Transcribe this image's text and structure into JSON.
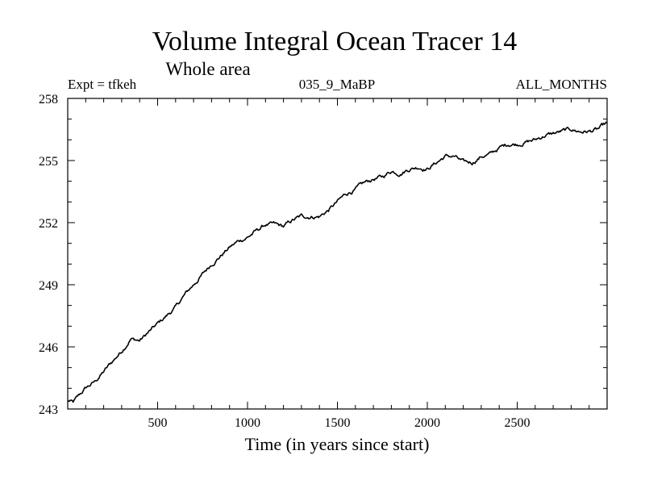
{
  "chart_data": {
    "type": "line",
    "title": "Volume Integral Ocean Tracer 14",
    "subtitle": "Whole area",
    "expt_label": "Expt = tfkeh",
    "center_label": "035_9_MaBP",
    "right_label": "ALL_MONTHS",
    "xlabel": "Time (in years since start)",
    "ylabel": "",
    "xlim": [
      0,
      3000
    ],
    "ylim": [
      243,
      258
    ],
    "xticks": [
      500,
      1000,
      1500,
      2000,
      2500
    ],
    "yticks": [
      243,
      246,
      249,
      252,
      255,
      258
    ],
    "grid": false,
    "series": [
      {
        "color": "#000000",
        "x": [
          0,
          30,
          60,
          100,
          150,
          200,
          250,
          300,
          350,
          400,
          450,
          500,
          550,
          600,
          650,
          700,
          750,
          800,
          850,
          900,
          950,
          1000,
          1050,
          1100,
          1150,
          1200,
          1250,
          1300,
          1350,
          1400,
          1450,
          1500,
          1550,
          1600,
          1650,
          1700,
          1750,
          1800,
          1850,
          1900,
          1950,
          2000,
          2050,
          2100,
          2150,
          2200,
          2250,
          2300,
          2350,
          2400,
          2450,
          2500,
          2550,
          2600,
          2650,
          2700,
          2750,
          2800,
          2850,
          2900,
          2950,
          3000
        ],
        "y": [
          243.4,
          243.3,
          243.6,
          244.0,
          244.3,
          244.8,
          245.3,
          245.8,
          246.4,
          246.3,
          246.7,
          247.1,
          247.5,
          247.9,
          248.5,
          249.0,
          249.5,
          250.0,
          250.4,
          250.8,
          251.1,
          251.3,
          251.6,
          251.9,
          251.9,
          251.8,
          252.1,
          252.3,
          252.3,
          252.3,
          252.6,
          253.0,
          253.4,
          253.6,
          253.9,
          254.1,
          254.2,
          254.5,
          254.4,
          254.6,
          254.7,
          254.6,
          254.9,
          255.2,
          255.2,
          254.9,
          254.9,
          255.2,
          255.3,
          255.6,
          255.8,
          255.8,
          255.9,
          256.0,
          256.2,
          256.3,
          256.4,
          256.5,
          256.4,
          256.4,
          256.5,
          256.8
        ]
      }
    ]
  }
}
